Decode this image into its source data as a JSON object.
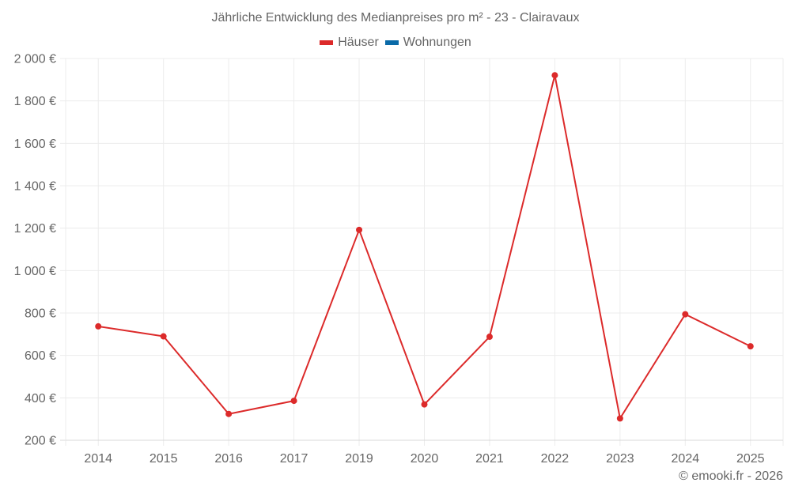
{
  "header": {
    "title": "Jährliche Entwicklung des Medianpreises pro m² - 23 - Clairavaux"
  },
  "legend": [
    {
      "label": "Häuser",
      "color": "#dc2a2a"
    },
    {
      "label": "Wohnungen",
      "color": "#0a6aa8"
    }
  ],
  "footer": {
    "credit": "© emooki.fr - 2026"
  },
  "chart_data": {
    "type": "line",
    "title": "Jährliche Entwicklung des Medianpreises pro m² - 23 - Clairavaux",
    "xlabel": "",
    "ylabel": "",
    "categories": [
      "2014",
      "2015",
      "2016",
      "2017",
      "2019",
      "2020",
      "2021",
      "2022",
      "2023",
      "2024",
      "2025"
    ],
    "series": [
      {
        "name": "Häuser",
        "color": "#dc2a2a",
        "values": [
          737,
          690,
          324,
          386,
          1192,
          369,
          688,
          1921,
          303,
          794,
          643
        ]
      },
      {
        "name": "Wohnungen",
        "color": "#0a6aa8",
        "values": []
      }
    ],
    "ylim": [
      200,
      2000
    ],
    "yticks": [
      200,
      400,
      600,
      800,
      1000,
      1200,
      1400,
      1600,
      1800,
      2000
    ],
    "ytick_labels": [
      "200 €",
      "400 €",
      "600 €",
      "800 €",
      "1 000 €",
      "1 200 €",
      "1 400 €",
      "1 600 €",
      "1 800 €",
      "2 000 €"
    ],
    "grid": true,
    "legend_position": "top"
  }
}
